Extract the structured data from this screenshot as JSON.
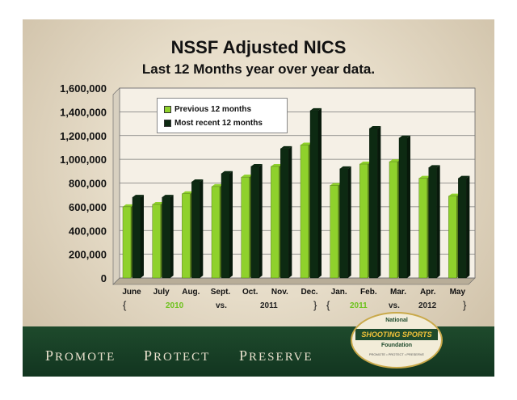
{
  "title": "NSSF Adjusted NICS",
  "subtitle": "Last 12 Months year over year data.",
  "chart_data": {
    "type": "bar",
    "categories": [
      "June",
      "July",
      "Aug.",
      "Sept.",
      "Oct.",
      "Nov.",
      "Dec.",
      "Jan.",
      "Feb.",
      "Mar.",
      "Apr.",
      "May"
    ],
    "series": [
      {
        "name": "Previous 12 months",
        "color": "#8fd12c",
        "values": [
          600000,
          620000,
          710000,
          770000,
          850000,
          940000,
          1120000,
          780000,
          960000,
          980000,
          840000,
          690000
        ]
      },
      {
        "name": "Most recent 12 months",
        "color": "#0d2a12",
        "values": [
          680000,
          680000,
          810000,
          880000,
          940000,
          1090000,
          1410000,
          920000,
          1260000,
          1180000,
          930000,
          840000
        ]
      }
    ],
    "yticks": [
      "0",
      "200,000",
      "400,000",
      "600,000",
      "800,000",
      "1,000,000",
      "1,200,000",
      "1,400,000",
      "1,600,000"
    ],
    "ylim": [
      0,
      1600000
    ],
    "grid": true,
    "legend_position": "top-left"
  },
  "periods": {
    "first_brace_open": "{",
    "first_start": "2010",
    "first_vs": "vs.",
    "first_end": "2011",
    "first_brace_close": "}",
    "second_brace_open": "{",
    "second_start": "2011",
    "second_vs": "vs.",
    "second_end": "2012",
    "second_brace_close": "}"
  },
  "footer": {
    "tagline": [
      "Promote",
      "Protect",
      "Preserve"
    ],
    "logo": {
      "top": "National",
      "middle": "SHOOTING SPORTS",
      "bottom": "Foundation",
      "motto": "PROMOTE • PROTECT • PRESERVE"
    }
  },
  "colors": {
    "previous": "#8fd12c",
    "recent": "#0d2a12",
    "footer": "#1e4a2c",
    "period_green": "#6cc21c"
  }
}
